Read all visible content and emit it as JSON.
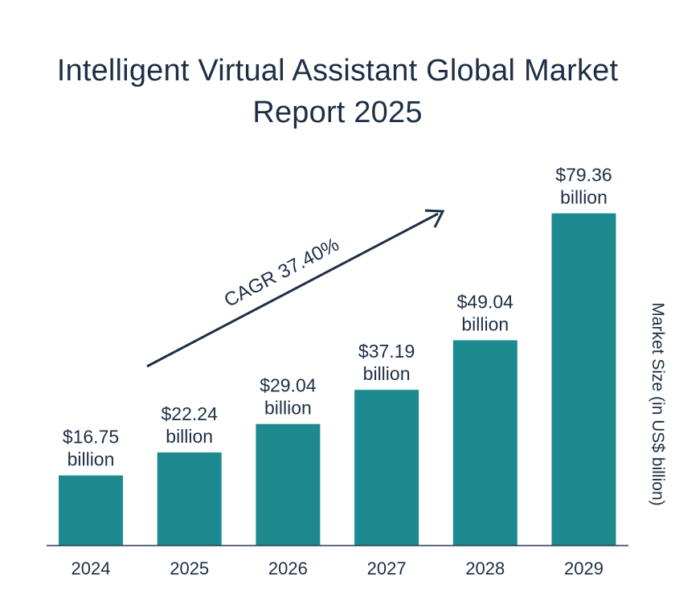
{
  "chart_data": {
    "type": "bar",
    "title_lines": [
      "Intelligent Virtual Assistant Global Market",
      "Report 2025"
    ],
    "categories": [
      "2024",
      "2025",
      "2026",
      "2027",
      "2028",
      "2029"
    ],
    "values": [
      16.75,
      22.24,
      29.04,
      37.19,
      49.04,
      79.36
    ],
    "value_labels": [
      [
        "$16.75",
        "billion"
      ],
      [
        "$22.24",
        "billion"
      ],
      [
        "$29.04",
        "billion"
      ],
      [
        "$37.19",
        "billion"
      ],
      [
        "$49.04",
        "billion"
      ],
      [
        "$79.36",
        "billion"
      ]
    ],
    "ylabel": "Market Size (in US$ billion)",
    "ylim": [
      0,
      100
    ],
    "annotation": "CAGR 37.40%",
    "bar_color": "#1c8a8f",
    "text_color": "#1e2f45",
    "grid": false,
    "legend": "none"
  }
}
